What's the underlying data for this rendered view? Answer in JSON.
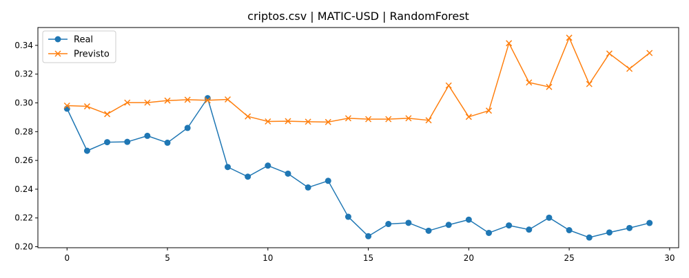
{
  "chart_data": {
    "type": "line",
    "title": "criptos.csv | MATIC-USD | RandomForest",
    "xlabel": "",
    "ylabel": "",
    "xlim": [
      -1.45,
      30.45
    ],
    "ylim": [
      0.1993,
      0.3524
    ],
    "x_ticks": [
      0,
      5,
      10,
      15,
      20,
      25,
      30
    ],
    "y_ticks": [
      0.2,
      0.22,
      0.24,
      0.26,
      0.28,
      0.3,
      0.32,
      0.34
    ],
    "y_tick_decimals": 2,
    "grid": false,
    "legend_position": "upper-left",
    "x": [
      0,
      1,
      2,
      3,
      4,
      5,
      6,
      7,
      8,
      9,
      10,
      11,
      12,
      13,
      14,
      15,
      16,
      17,
      18,
      19,
      20,
      21,
      22,
      23,
      24,
      25,
      26,
      27,
      28,
      29
    ],
    "series": [
      {
        "name": "Real",
        "color": "#1f77b4",
        "marker": "circle",
        "values": [
          0.296,
          0.2667,
          0.2727,
          0.2729,
          0.2771,
          0.2723,
          0.2826,
          0.3033,
          0.2554,
          0.2487,
          0.2564,
          0.2508,
          0.2412,
          0.2458,
          0.2208,
          0.2073,
          0.2158,
          0.2166,
          0.2111,
          0.2152,
          0.2188,
          0.2096,
          0.2148,
          0.2119,
          0.2202,
          0.2115,
          0.2064,
          0.2099,
          0.213,
          0.2165
        ]
      },
      {
        "name": "Previsto",
        "color": "#ff7f0e",
        "marker": "x",
        "values": [
          0.2981,
          0.2976,
          0.2922,
          0.3002,
          0.3002,
          0.3016,
          0.3022,
          0.3018,
          0.3024,
          0.2906,
          0.2871,
          0.2873,
          0.2869,
          0.2867,
          0.2893,
          0.2887,
          0.2887,
          0.2893,
          0.2879,
          0.3121,
          0.2903,
          0.2946,
          0.3415,
          0.3142,
          0.3111,
          0.3453,
          0.3131,
          0.3343,
          0.3237,
          0.3347
        ]
      }
    ]
  }
}
